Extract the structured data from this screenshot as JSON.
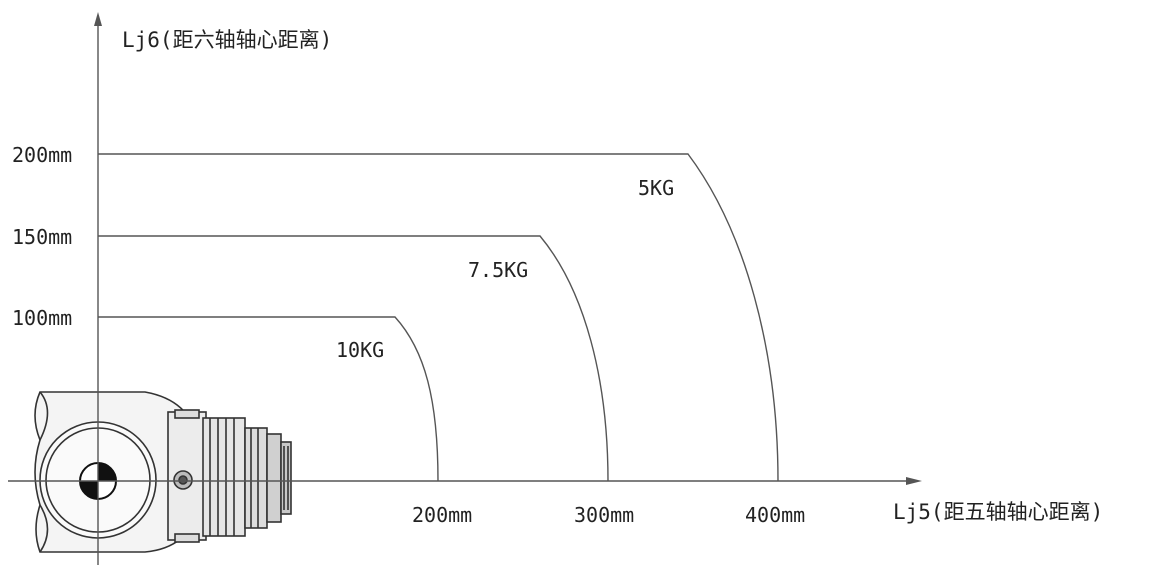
{
  "axes": {
    "y_title": "Lj6(距六轴轴心距离)",
    "x_title": "Lj5(距五轴轴心距离)",
    "y_ticks": [
      "200mm",
      "150mm",
      "100mm"
    ],
    "x_ticks": [
      "200mm",
      "300mm",
      "400mm"
    ]
  },
  "curves": [
    {
      "load": "10KG",
      "lj5_max_mm": 200,
      "lj6_max_mm": 100
    },
    {
      "load": "7.5KG",
      "lj5_max_mm": 300,
      "lj6_max_mm": 150
    },
    {
      "load": "5KG",
      "lj5_max_mm": 400,
      "lj6_max_mm": 200
    }
  ],
  "colors": {
    "line": "#555555",
    "text": "#222222",
    "background": "#ffffff"
  }
}
